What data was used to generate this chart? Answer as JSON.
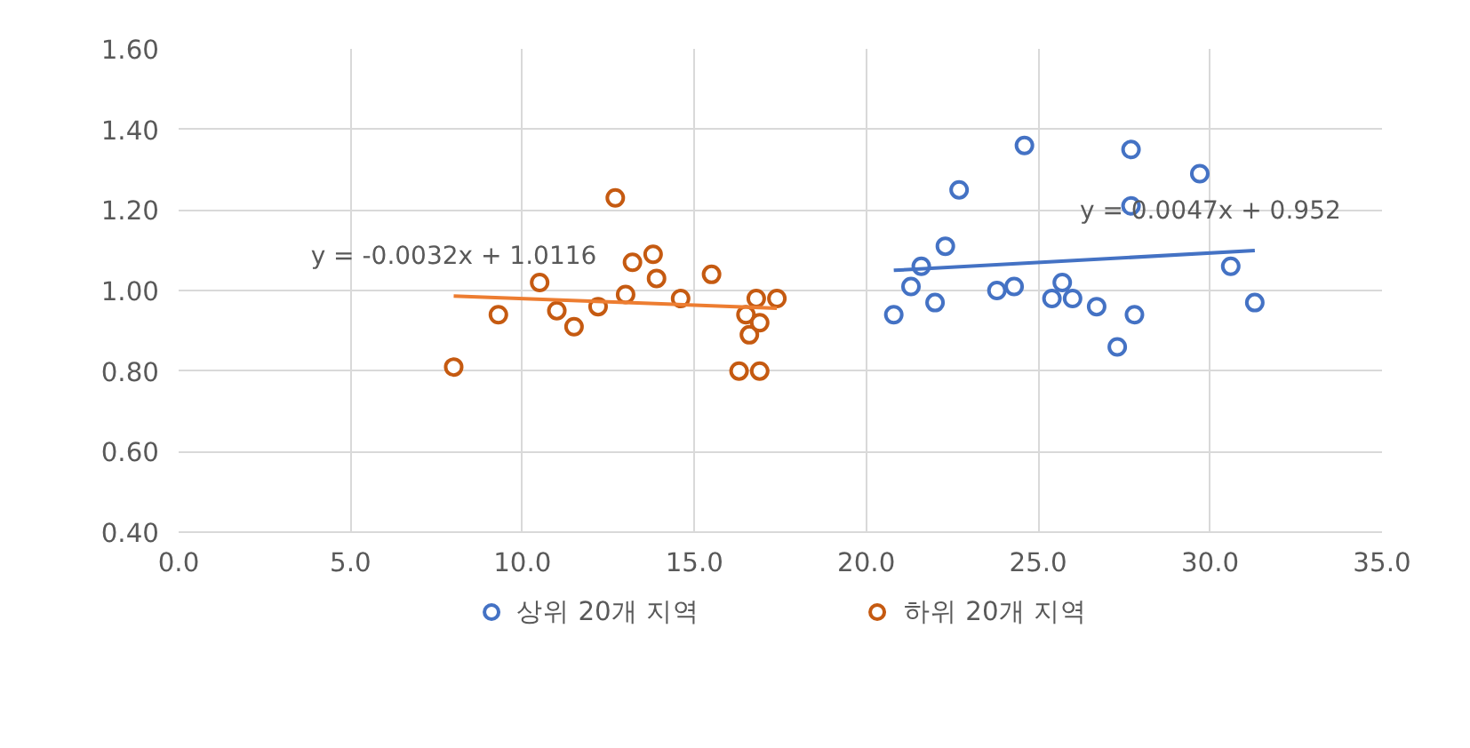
{
  "chart_data": {
    "type": "scatter",
    "marker": "circle",
    "grid": true,
    "legend": "bottom",
    "xlim": [
      0,
      35
    ],
    "ylim": [
      0.4,
      1.6
    ],
    "xticks": [
      {
        "value": 0,
        "label": "0.0"
      },
      {
        "value": 5,
        "label": "5.0"
      },
      {
        "value": 10,
        "label": "10.0"
      },
      {
        "value": 15,
        "label": "15.0"
      },
      {
        "value": 20,
        "label": "20.0"
      },
      {
        "value": 25,
        "label": "25.0"
      },
      {
        "value": 30,
        "label": "30.0"
      },
      {
        "value": 35,
        "label": "35.0"
      }
    ],
    "yticks": [
      {
        "value": 0.4,
        "label": "0.40"
      },
      {
        "value": 0.6,
        "label": "0.60"
      },
      {
        "value": 0.8,
        "label": "0.80"
      },
      {
        "value": 1.0,
        "label": "1.00"
      },
      {
        "value": 1.2,
        "label": "1.20"
      },
      {
        "value": 1.4,
        "label": "1.40"
      },
      {
        "value": 1.6,
        "label": "1.60"
      }
    ],
    "series": [
      {
        "name": "상위 20개 지역",
        "color": "#4472c4",
        "x": [
          20.8,
          21.3,
          21.6,
          22.0,
          22.3,
          22.7,
          23.8,
          24.3,
          24.6,
          25.4,
          25.7,
          26.0,
          26.7,
          27.3,
          27.7,
          27.7,
          27.8,
          29.7,
          30.6,
          31.3
        ],
        "values": [
          0.94,
          1.01,
          1.06,
          0.97,
          1.11,
          1.25,
          1.0,
          1.01,
          1.36,
          0.98,
          1.02,
          0.98,
          0.96,
          0.86,
          1.35,
          1.21,
          0.94,
          1.29,
          1.06,
          0.97
        ]
      },
      {
        "name": "하위 20개 지역",
        "color": "#c55a11",
        "x": [
          8.0,
          9.3,
          10.5,
          11.0,
          11.5,
          12.2,
          12.7,
          13.0,
          13.2,
          13.8,
          13.9,
          14.6,
          15.5,
          16.3,
          16.5,
          16.6,
          16.8,
          16.9,
          16.9,
          17.4
        ],
        "values": [
          0.81,
          0.94,
          1.02,
          0.95,
          0.91,
          0.96,
          1.23,
          0.99,
          1.07,
          1.09,
          1.03,
          0.98,
          1.04,
          0.8,
          0.94,
          0.89,
          0.98,
          0.92,
          0.8,
          0.98
        ]
      },
      {
        "type": "line",
        "marker": "none",
        "color": "#4472c4",
        "x": [
          20.8,
          31.3
        ],
        "values": [
          1.05,
          1.099
        ]
      },
      {
        "type": "line",
        "marker": "none",
        "color": "#ed7d31",
        "x": [
          8.0,
          17.4
        ],
        "values": [
          0.986,
          0.956
        ]
      }
    ],
    "annotations": [
      "y = 0.0047x + 0.952",
      "y = -0.0032x + 1.0116"
    ]
  }
}
